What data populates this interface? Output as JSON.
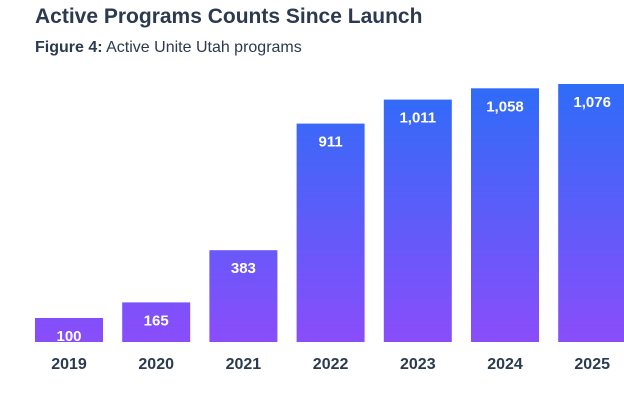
{
  "chart_data": {
    "type": "bar",
    "title": "Active Programs Counts Since Launch",
    "figure_label": "Figure 4:",
    "subtitle": "Active Unite Utah programs",
    "categories": [
      "2019",
      "2020",
      "2021",
      "2022",
      "2023",
      "2024",
      "2025"
    ],
    "values": [
      100,
      165,
      383,
      911,
      1011,
      1058,
      1076
    ],
    "value_labels": [
      "100",
      "165",
      "383",
      "911",
      "1,011",
      "1,058",
      "1,076"
    ],
    "xlabel": "",
    "ylabel": "",
    "ylim": [
      0,
      1076
    ],
    "grid": false,
    "colors": {
      "bar_top": "#2e6cf8",
      "bar_bottom": "#8a4dfa",
      "text": "#2b3a4e",
      "label": "#ffffff"
    }
  }
}
